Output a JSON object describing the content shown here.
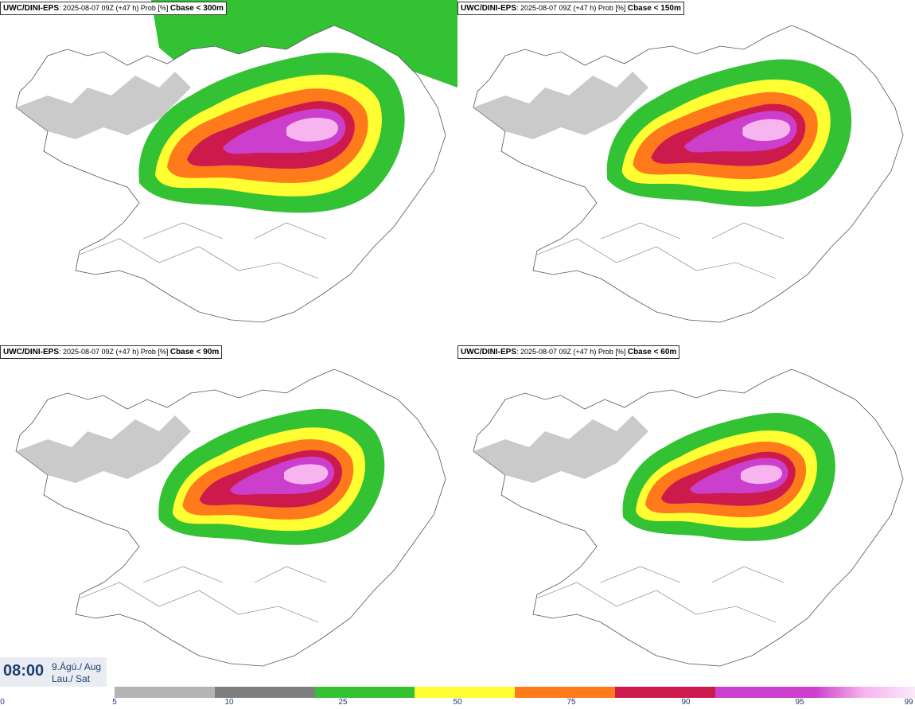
{
  "panels": [
    {
      "model": "UWC/DINI-EPS",
      "run": ": 2025-08-07 09Z (+47 h) Prob [%] ",
      "threshold": "Cbase < 300m"
    },
    {
      "model": "UWC/DINI-EPS",
      "run": ": 2025-08-07 09Z (+47 h) Prob [%] ",
      "threshold": "Cbase < 150m"
    },
    {
      "model": "UWC/DINI-EPS",
      "run": ": 2025-08-07 09Z (+47 h) Prob [%] ",
      "threshold": "Cbase < 90m"
    },
    {
      "model": "UWC/DINI-EPS",
      "run": ": 2025-08-07 09Z (+47 h) Prob [%] ",
      "threshold": "Cbase < 60m"
    }
  ],
  "valid_time": {
    "time": "08:00",
    "date_line1": "9.Ágú./ Aug",
    "date_line2": "Lau./ Sat"
  },
  "legend": {
    "ticks": [
      "0",
      "5",
      "10",
      "25",
      "50",
      "75",
      "90",
      "95",
      "99"
    ],
    "colors": [
      "#b4b4b4",
      "#7f7f7f",
      "#33c233",
      "#ffff33",
      "#ff7a1a",
      "#cc1a4d",
      "#cc3fcc",
      "#f7b5f0"
    ]
  }
}
